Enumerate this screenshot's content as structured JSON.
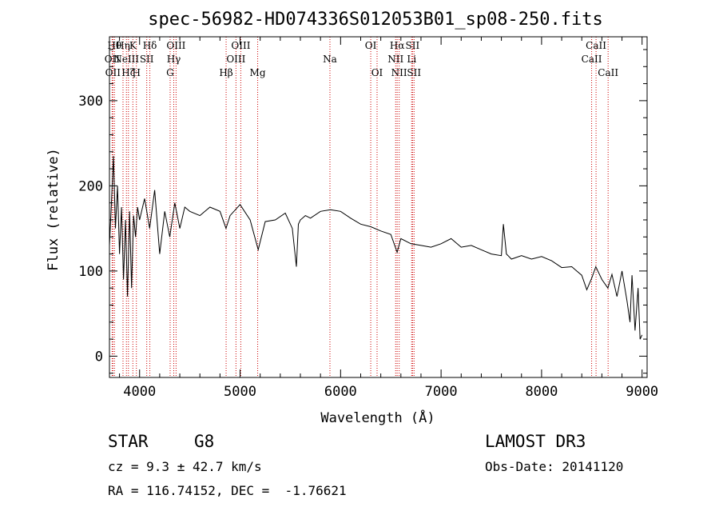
{
  "chart_data": {
    "type": "line",
    "title": "spec-56982-HD074336S012053B01_sp08-250.fits",
    "xlabel": "Wavelength (Å)",
    "ylabel": "Flux (relative)",
    "xlim": [
      3700,
      9050
    ],
    "ylim": [
      -25,
      375
    ],
    "xticks": [
      4000,
      5000,
      6000,
      7000,
      8000,
      9000
    ],
    "yticks": [
      0,
      100,
      200,
      300
    ],
    "grid": false,
    "series": [
      {
        "x": [
          3700,
          3720,
          3740,
          3760,
          3780,
          3800,
          3820,
          3840,
          3860,
          3880,
          3900,
          3920,
          3940,
          3960,
          3980,
          4000,
          4050,
          4100,
          4150,
          4200,
          4250,
          4300,
          4350,
          4400,
          4450,
          4500,
          4600,
          4700,
          4800,
          4860,
          4900,
          5000,
          5100,
          5180,
          5250,
          5350,
          5450,
          5520,
          5560,
          5580,
          5600,
          5650,
          5700,
          5800,
          5900,
          6000,
          6100,
          6200,
          6300,
          6400,
          6500,
          6563,
          6600,
          6700,
          6800,
          6900,
          7000,
          7100,
          7200,
          7300,
          7400,
          7500,
          7600,
          7620,
          7650,
          7700,
          7800,
          7900,
          8000,
          8100,
          8200,
          8300,
          8350,
          8400,
          8450,
          8500,
          8540,
          8600,
          8660,
          8700,
          8750,
          8800,
          8850,
          8880,
          8900,
          8930,
          8960,
          8980,
          9000
        ],
        "values": [
          130,
          180,
          235,
          150,
          200,
          120,
          175,
          90,
          160,
          70,
          170,
          80,
          165,
          140,
          175,
          160,
          185,
          150,
          195,
          120,
          170,
          140,
          180,
          150,
          175,
          170,
          165,
          175,
          170,
          150,
          165,
          178,
          160,
          125,
          158,
          160,
          168,
          150,
          105,
          155,
          160,
          165,
          162,
          170,
          172,
          170,
          162,
          155,
          152,
          147,
          143,
          122,
          138,
          132,
          130,
          128,
          132,
          138,
          128,
          130,
          125,
          120,
          118,
          155,
          120,
          114,
          118,
          114,
          117,
          112,
          104,
          105,
          100,
          95,
          78,
          92,
          105,
          90,
          80,
          96,
          70,
          100,
          65,
          40,
          95,
          30,
          80,
          20,
          25
        ]
      }
    ],
    "line_labels": [
      {
        "x": 3727,
        "row": 2,
        "text": "OII"
      },
      {
        "x": 3734,
        "row": 3,
        "text": "OII"
      },
      {
        "x": 3750,
        "row": 1,
        "text": "Hθ"
      },
      {
        "x": 3835,
        "row": 1,
        "text": "Hη"
      },
      {
        "x": 3869,
        "row": 2,
        "text": "NeIII"
      },
      {
        "x": 3889,
        "row": 3,
        "text": "Hζ"
      },
      {
        "x": 3933,
        "row": 1,
        "text": "K"
      },
      {
        "x": 3968,
        "row": 3,
        "text": "H"
      },
      {
        "x": 4071,
        "row": 2,
        "text": "SII"
      },
      {
        "x": 4102,
        "row": 1,
        "text": "Hδ"
      },
      {
        "x": 4304,
        "row": 3,
        "text": "G"
      },
      {
        "x": 4340,
        "row": 2,
        "text": "Hγ"
      },
      {
        "x": 4363,
        "row": 1,
        "text": "OIII"
      },
      {
        "x": 4861,
        "row": 3,
        "text": "Hβ"
      },
      {
        "x": 4959,
        "row": 2,
        "text": "OIII"
      },
      {
        "x": 5007,
        "row": 1,
        "text": "OIII"
      },
      {
        "x": 5175,
        "row": 3,
        "text": "Mg"
      },
      {
        "x": 5894,
        "row": 2,
        "text": "Na"
      },
      {
        "x": 6300,
        "row": 1,
        "text": "OI"
      },
      {
        "x": 6363,
        "row": 3,
        "text": "OI"
      },
      {
        "x": 6548,
        "row": 2,
        "text": "NII"
      },
      {
        "x": 6563,
        "row": 1,
        "text": "Hα"
      },
      {
        "x": 6583,
        "row": 3,
        "text": "NII"
      },
      {
        "x": 6707,
        "row": 2,
        "text": "Li"
      },
      {
        "x": 6716,
        "row": 1,
        "text": "SII"
      },
      {
        "x": 6731,
        "row": 3,
        "text": "SII"
      },
      {
        "x": 8498,
        "row": 2,
        "text": "CaII"
      },
      {
        "x": 8542,
        "row": 1,
        "text": "CaII"
      },
      {
        "x": 8662,
        "row": 3,
        "text": "CaII"
      }
    ],
    "line_color": "#000000",
    "marker_color": "#cc0000"
  },
  "info": {
    "class": "STAR",
    "subclass": "G8",
    "survey": "LAMOST DR3",
    "cz": "cz = 9.3 ± 42.7 km/s",
    "obs_date": "Obs-Date: 20141120",
    "radec": "RA = 116.74152, DEC =  -1.76621"
  }
}
